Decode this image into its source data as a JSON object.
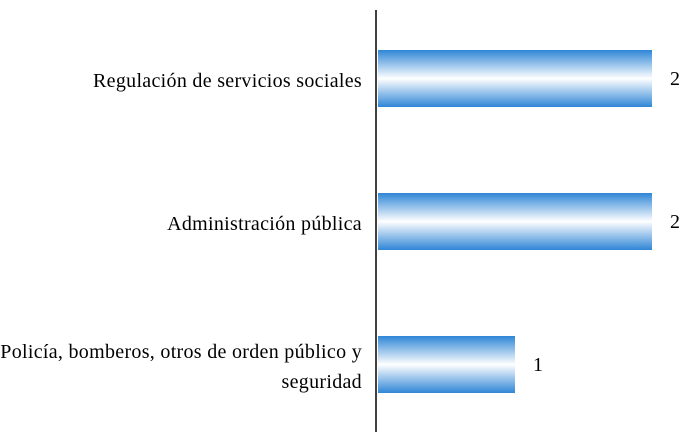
{
  "chart_data": {
    "type": "barh",
    "categories": [
      "Regulación de servicios sociales",
      "Administración pública",
      "Policía, bomberos, otros de orden público y seguridad"
    ],
    "values": [
      2,
      2,
      1
    ],
    "color": "#2f86d6"
  }
}
